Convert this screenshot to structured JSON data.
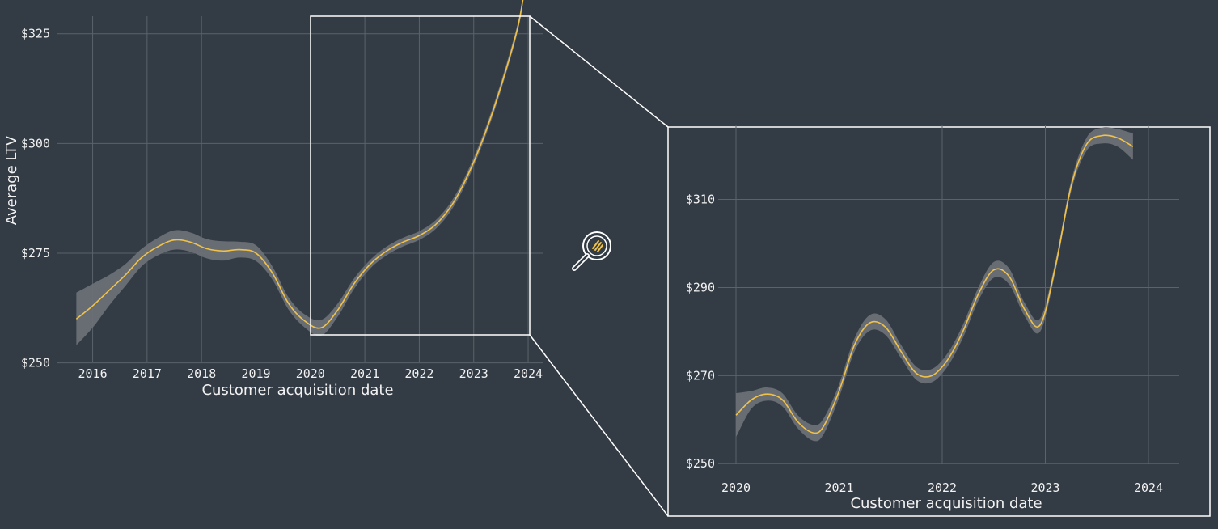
{
  "colors": {
    "background": "#333b44",
    "line": "#f0c24a",
    "band": "#6b6f76",
    "grid": "#5a626b",
    "text": "#f2f2f2",
    "frame": "#ffffff"
  },
  "icons": {
    "zoom": "magnifier-icon"
  },
  "chart_data": [
    {
      "type": "line",
      "xlabel": "Customer acquisition date",
      "ylabel": "Average LTV",
      "xlim": [
        2015.65,
        2024.05
      ],
      "ylim": [
        249,
        329
      ],
      "xticks": [
        2016,
        2017,
        2018,
        2019,
        2020,
        2021,
        2022,
        2023,
        2024
      ],
      "xtick_labels": [
        "2016",
        "2017",
        "2018",
        "2019",
        "2020",
        "2021",
        "2022",
        "2023",
        "2024"
      ],
      "yticks": [
        250,
        275,
        300,
        325
      ],
      "ytick_labels": [
        "$250",
        "$275",
        "$300",
        "$325"
      ],
      "grid": true,
      "confidence_band": true,
      "zoom_window": {
        "x": [
          2020.0,
          2024.0
        ],
        "y": [
          257,
          334
        ]
      },
      "series": [
        {
          "x": [
            2015.7,
            2016.0,
            2016.3,
            2016.6,
            2016.9,
            2017.2,
            2017.5,
            2017.8,
            2018.1,
            2018.4,
            2018.7,
            2019.0,
            2019.3,
            2019.6,
            2019.9,
            2020.2,
            2020.5,
            2020.8,
            2021.1,
            2021.4,
            2021.7,
            2022.0,
            2022.3,
            2022.6,
            2022.9,
            2023.2,
            2023.5,
            2023.8,
            2023.92
          ],
          "y": [
            260,
            263,
            266.5,
            270,
            274,
            276.5,
            278,
            277.5,
            276,
            275.5,
            275.8,
            275,
            270.5,
            263.5,
            259.5,
            258,
            262,
            268,
            272.5,
            275.5,
            277.5,
            279,
            281.5,
            286,
            293,
            302,
            313,
            326,
            334
          ],
          "band": [
            6,
            5,
            3.5,
            2.5,
            2,
            2,
            2.2,
            2.2,
            2.2,
            2.2,
            1.8,
            1.8,
            1.5,
            1.4,
            1.5,
            1.8,
            1.5,
            1.2,
            1,
            1,
            1,
            1,
            1,
            1,
            1,
            1,
            1,
            1,
            1
          ]
        }
      ]
    },
    {
      "type": "line",
      "xlabel": "Customer acquisition date",
      "ylabel": "",
      "xlim": [
        1.0,
        5.0
      ],
      "ylim": [
        246,
        327
      ],
      "xticks": [
        1,
        2,
        3,
        4,
        5
      ],
      "xtick_labels": [
        "2020",
        "2021",
        "2022",
        "2023",
        "2024"
      ],
      "yticks": [
        250,
        270,
        290,
        310
      ],
      "ytick_labels": [
        "$250",
        "$270",
        "$290",
        "$310"
      ],
      "grid": true,
      "confidence_band": true,
      "series": [
        {
          "x": [
            1.0,
            1.15,
            1.3,
            1.45,
            1.6,
            1.75,
            1.85,
            2.0,
            2.15,
            2.3,
            2.45,
            2.6,
            2.75,
            2.9,
            3.05,
            3.2,
            3.35,
            3.5,
            3.65,
            3.8,
            3.95,
            4.1,
            4.25,
            4.4,
            4.55,
            4.7,
            4.85
          ],
          "y": [
            261,
            264.5,
            265.8,
            264.5,
            259.5,
            257,
            258.5,
            266.5,
            277,
            282,
            281,
            275.5,
            270.5,
            270,
            273.5,
            280,
            288.5,
            294,
            292.5,
            285,
            281.5,
            295,
            313,
            322.5,
            324.5,
            324,
            322
          ],
          "band": [
            5,
            2,
            1.5,
            1.5,
            1.5,
            1.8,
            1.8,
            1.5,
            1.5,
            1.8,
            1.8,
            1.5,
            1.5,
            1.5,
            1.5,
            1.5,
            1.5,
            1.8,
            1.8,
            1.5,
            1.5,
            1.2,
            1.2,
            1.5,
            1.8,
            2,
            3
          ]
        }
      ]
    }
  ]
}
